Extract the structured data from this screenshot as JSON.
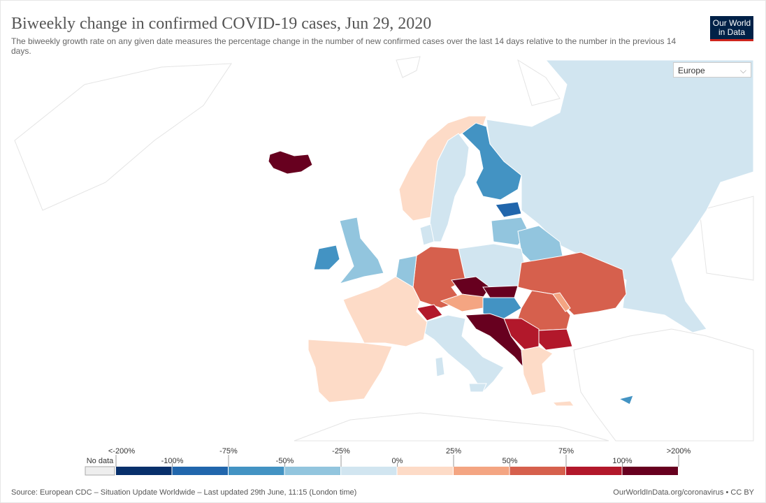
{
  "header": {
    "title": "Biweekly change in confirmed COVID-19 cases, Jun 29, 2020",
    "subtitle": "The biweekly growth rate on any given date measures the percentage change in the number of new confirmed cases over the last 14 days relative to the number in the previous 14 days.",
    "logo": [
      "Our World",
      "in Data"
    ]
  },
  "controls": {
    "region": "Europe"
  },
  "legend": {
    "no_data": "No data",
    "labels": [
      "<-200%",
      "-100%",
      "-75%",
      "-50%",
      "-25%",
      "0%",
      "25%",
      "50%",
      "75%",
      "100%",
      ">200%"
    ],
    "colors": [
      "#08306b",
      "#2166ac",
      "#4393c3",
      "#92c5de",
      "#d1e5f0",
      "#fddbc7",
      "#f4a582",
      "#d6604d",
      "#b2182b",
      "#67001f"
    ]
  },
  "footer": {
    "source": "Source: European CDC – Situation Update Worldwide – Last updated 29th June, 11:15 (London time)",
    "url": "OurWorldInData.org/coronavirus • CC BY"
  }
}
